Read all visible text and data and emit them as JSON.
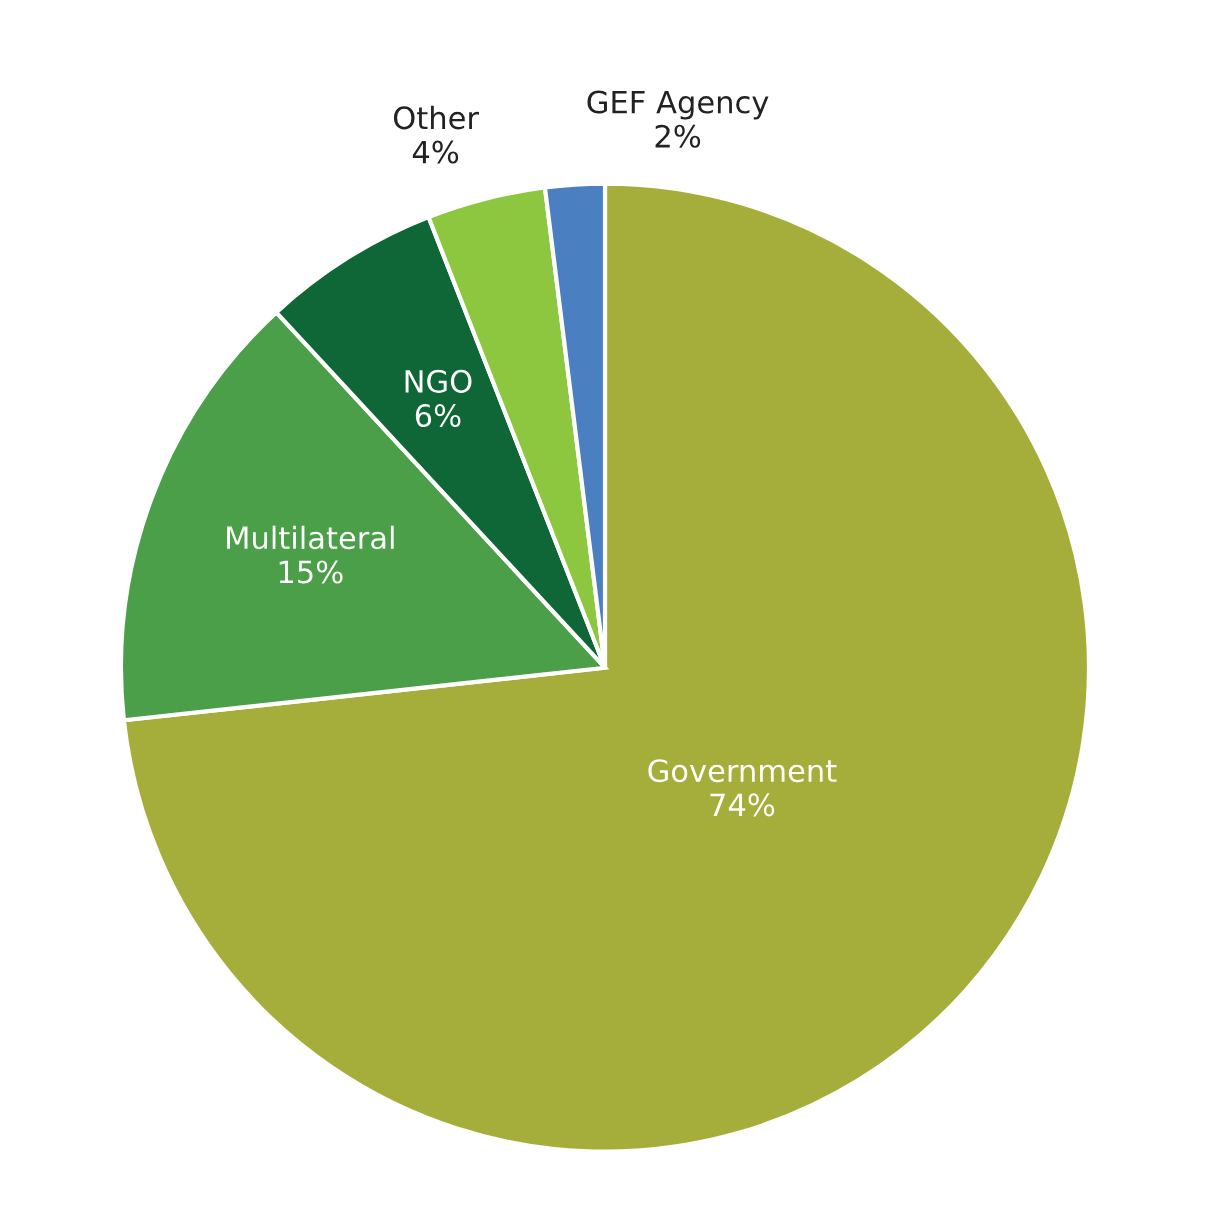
{
  "chart_data": {
    "type": "pie",
    "categories": [
      "Government",
      "Multilateral",
      "NGO",
      "Other",
      "GEF Agency"
    ],
    "values": [
      74,
      15,
      6,
      4,
      2
    ],
    "value_labels": [
      "74%",
      "15%",
      "6%",
      "4%",
      "2%"
    ],
    "colors": [
      "#a6ae3b",
      "#4b9f48",
      "#0f6636",
      "#8dc63f",
      "#4a7fc1"
    ]
  }
}
